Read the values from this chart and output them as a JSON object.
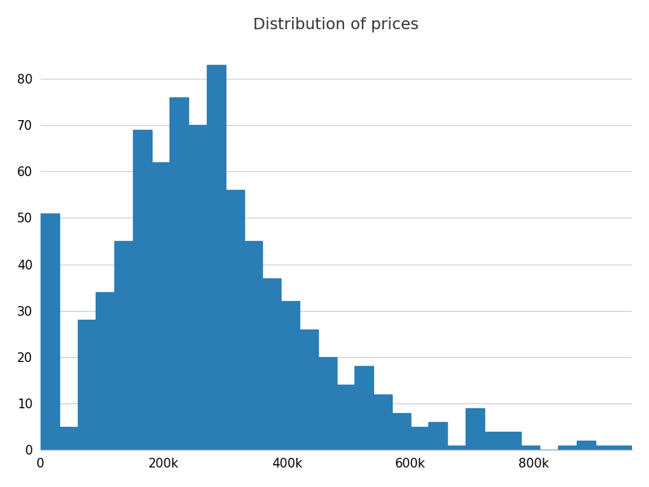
{
  "title": "Distribution of prices",
  "bar_color": "#2a7db5",
  "background_color": "#ffffff",
  "grid_color": "#cccccc",
  "counts": [
    51,
    5,
    28,
    34,
    45,
    69,
    62,
    76,
    70,
    83,
    56,
    45,
    37,
    32,
    26,
    20,
    14,
    18,
    12,
    8,
    5,
    6,
    1,
    9,
    4,
    4,
    1,
    0,
    1,
    2,
    1,
    1
  ],
  "bin_width": 30000,
  "x_start": 0,
  "xlim": [
    0,
    960000
  ],
  "ylim": [
    0,
    87
  ],
  "yticks": [
    0,
    10,
    20,
    30,
    40,
    50,
    60,
    70,
    80
  ],
  "title_fontsize": 14,
  "tick_fontsize": 11
}
